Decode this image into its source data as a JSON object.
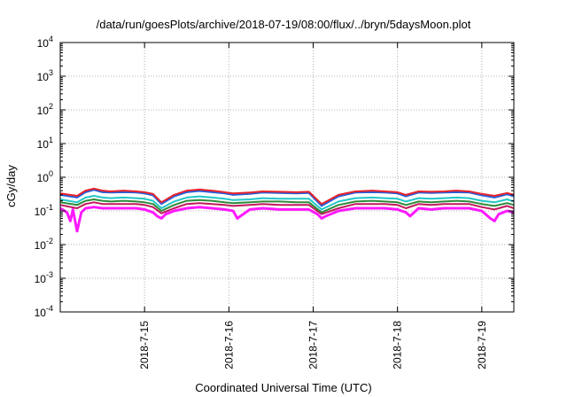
{
  "chart_data": {
    "type": "line",
    "title": "/data/run/goesPlots/archive/2018-07-19/08:00/flux/../bryn/5daysMoon.plot",
    "xlabel": "Coordinated Universal Time (UTC)",
    "ylabel": "cGy/day",
    "yscale": "log",
    "ylim": [
      0.0001,
      10000
    ],
    "y_ticks": [
      {
        "value": 0.0001,
        "base": "10",
        "exp": "-4"
      },
      {
        "value": 0.001,
        "base": "10",
        "exp": "-3"
      },
      {
        "value": 0.01,
        "base": "10",
        "exp": "-2"
      },
      {
        "value": 0.1,
        "base": "10",
        "exp": "-1"
      },
      {
        "value": 1,
        "base": "10",
        "exp": "0"
      },
      {
        "value": 10,
        "base": "10",
        "exp": "1"
      },
      {
        "value": 100,
        "base": "10",
        "exp": "2"
      },
      {
        "value": 1000,
        "base": "10",
        "exp": "3"
      },
      {
        "value": 10000,
        "base": "10",
        "exp": "4"
      }
    ],
    "x_ticks": [
      "2018-7-15",
      "2018-7-16",
      "2018-7-17",
      "2018-7-18",
      "2018-7-19"
    ],
    "x_tick_days": [
      1,
      2,
      3,
      4,
      5
    ],
    "xlim_days": [
      0,
      5.38
    ],
    "grid": true,
    "legend": "none",
    "series": [
      {
        "color": "#e8232a",
        "x": [
          0,
          0.2,
          0.3,
          0.4,
          0.5,
          0.6,
          0.75,
          0.9,
          1.0,
          1.1,
          1.2,
          1.35,
          1.5,
          1.65,
          1.8,
          1.95,
          2.05,
          2.25,
          2.4,
          2.6,
          2.8,
          2.95,
          3.1,
          3.3,
          3.5,
          3.7,
          3.85,
          4.0,
          4.1,
          4.25,
          4.4,
          4.55,
          4.7,
          4.85,
          5.0,
          5.15,
          5.3,
          5.38
        ],
        "y": [
          0.33,
          0.28,
          0.4,
          0.46,
          0.4,
          0.38,
          0.4,
          0.38,
          0.36,
          0.32,
          0.18,
          0.3,
          0.4,
          0.43,
          0.4,
          0.36,
          0.33,
          0.35,
          0.38,
          0.37,
          0.36,
          0.37,
          0.16,
          0.3,
          0.38,
          0.4,
          0.38,
          0.36,
          0.3,
          0.38,
          0.37,
          0.38,
          0.4,
          0.38,
          0.32,
          0.28,
          0.34,
          0.3
        ]
      },
      {
        "color": "#1f5fe0",
        "x": [
          0,
          0.2,
          0.3,
          0.4,
          0.5,
          0.6,
          0.75,
          0.9,
          1.0,
          1.1,
          1.2,
          1.35,
          1.5,
          1.65,
          1.8,
          1.95,
          2.05,
          2.25,
          2.4,
          2.6,
          2.8,
          2.95,
          3.1,
          3.3,
          3.5,
          3.7,
          3.85,
          4.0,
          4.1,
          4.25,
          4.4,
          4.55,
          4.7,
          4.85,
          5.0,
          5.15,
          5.3,
          5.38
        ],
        "y": [
          0.3,
          0.25,
          0.36,
          0.42,
          0.36,
          0.35,
          0.36,
          0.35,
          0.33,
          0.29,
          0.16,
          0.27,
          0.36,
          0.39,
          0.36,
          0.33,
          0.3,
          0.32,
          0.35,
          0.34,
          0.33,
          0.34,
          0.14,
          0.27,
          0.35,
          0.36,
          0.35,
          0.33,
          0.27,
          0.35,
          0.34,
          0.35,
          0.36,
          0.35,
          0.29,
          0.25,
          0.31,
          0.27
        ]
      },
      {
        "color": "#22c7c7",
        "x": [
          0,
          0.2,
          0.3,
          0.4,
          0.5,
          0.6,
          0.75,
          0.9,
          1.0,
          1.1,
          1.2,
          1.35,
          1.5,
          1.65,
          1.8,
          1.95,
          2.05,
          2.25,
          2.4,
          2.6,
          2.8,
          2.95,
          3.1,
          3.3,
          3.5,
          3.7,
          3.85,
          4.0,
          4.1,
          4.25,
          4.4,
          4.55,
          4.7,
          4.85,
          5.0,
          5.15,
          5.3,
          5.38
        ],
        "y": [
          0.22,
          0.18,
          0.25,
          0.28,
          0.25,
          0.24,
          0.25,
          0.24,
          0.23,
          0.2,
          0.12,
          0.19,
          0.25,
          0.27,
          0.25,
          0.23,
          0.21,
          0.22,
          0.24,
          0.23,
          0.23,
          0.23,
          0.11,
          0.19,
          0.24,
          0.25,
          0.24,
          0.23,
          0.19,
          0.24,
          0.23,
          0.24,
          0.25,
          0.24,
          0.2,
          0.18,
          0.22,
          0.19
        ]
      },
      {
        "color": "#2e8b3a",
        "x": [
          0,
          0.2,
          0.3,
          0.4,
          0.5,
          0.6,
          0.75,
          0.9,
          1.0,
          1.1,
          1.2,
          1.35,
          1.5,
          1.65,
          1.8,
          1.95,
          2.05,
          2.25,
          2.4,
          2.6,
          2.8,
          2.95,
          3.1,
          3.3,
          3.5,
          3.7,
          3.85,
          4.0,
          4.1,
          4.25,
          4.4,
          4.55,
          4.7,
          4.85,
          5.0,
          5.15,
          5.3,
          5.38
        ],
        "y": [
          0.18,
          0.15,
          0.2,
          0.22,
          0.2,
          0.19,
          0.2,
          0.19,
          0.18,
          0.16,
          0.1,
          0.15,
          0.2,
          0.21,
          0.2,
          0.18,
          0.17,
          0.18,
          0.19,
          0.19,
          0.18,
          0.18,
          0.09,
          0.15,
          0.19,
          0.2,
          0.19,
          0.18,
          0.15,
          0.19,
          0.18,
          0.19,
          0.2,
          0.19,
          0.16,
          0.14,
          0.17,
          0.15
        ]
      },
      {
        "color": "#c2185b",
        "x": [
          0,
          0.2,
          0.3,
          0.4,
          0.5,
          0.6,
          0.75,
          0.9,
          1.0,
          1.1,
          1.2,
          1.35,
          1.5,
          1.65,
          1.8,
          1.95,
          2.05,
          2.25,
          2.4,
          2.6,
          2.8,
          2.95,
          3.1,
          3.3,
          3.5,
          3.7,
          3.85,
          4.0,
          4.1,
          4.25,
          4.4,
          4.55,
          4.7,
          4.85,
          5.0,
          5.15,
          5.3,
          5.38
        ],
        "y": [
          0.15,
          0.12,
          0.16,
          0.18,
          0.16,
          0.16,
          0.16,
          0.16,
          0.15,
          0.13,
          0.085,
          0.12,
          0.16,
          0.17,
          0.16,
          0.15,
          0.14,
          0.15,
          0.16,
          0.15,
          0.15,
          0.15,
          0.08,
          0.12,
          0.16,
          0.16,
          0.16,
          0.15,
          0.12,
          0.16,
          0.15,
          0.16,
          0.16,
          0.16,
          0.13,
          0.11,
          0.14,
          0.12
        ]
      },
      {
        "color": "#ff19ff",
        "x": [
          0,
          0.08,
          0.12,
          0.15,
          0.2,
          0.25,
          0.3,
          0.4,
          0.5,
          0.6,
          0.75,
          0.9,
          1.0,
          1.1,
          1.15,
          1.2,
          1.25,
          1.35,
          1.5,
          1.65,
          1.8,
          1.95,
          2.05,
          2.1,
          2.25,
          2.4,
          2.6,
          2.8,
          2.95,
          3.05,
          3.1,
          3.15,
          3.3,
          3.5,
          3.7,
          3.85,
          4.0,
          4.1,
          4.15,
          4.25,
          4.4,
          4.55,
          4.7,
          4.85,
          5.0,
          5.1,
          5.15,
          5.2,
          5.3,
          5.38
        ],
        "y": [
          0.12,
          0.09,
          0.05,
          0.11,
          0.025,
          0.09,
          0.12,
          0.13,
          0.12,
          0.12,
          0.12,
          0.12,
          0.11,
          0.09,
          0.07,
          0.06,
          0.08,
          0.1,
          0.12,
          0.13,
          0.12,
          0.11,
          0.1,
          0.06,
          0.11,
          0.12,
          0.11,
          0.11,
          0.11,
          0.08,
          0.06,
          0.07,
          0.1,
          0.12,
          0.12,
          0.12,
          0.11,
          0.09,
          0.07,
          0.12,
          0.11,
          0.12,
          0.12,
          0.12,
          0.1,
          0.06,
          0.05,
          0.08,
          0.1,
          0.09
        ]
      }
    ]
  }
}
